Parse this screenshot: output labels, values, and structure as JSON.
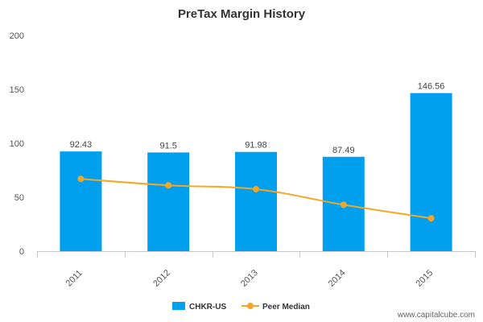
{
  "chart_data": {
    "type": "bar",
    "title": "PreTax Margin History",
    "categories": [
      "2011",
      "2012",
      "2013",
      "2014",
      "2015"
    ],
    "series": [
      {
        "name": "CHKR-US",
        "type": "bar",
        "values": [
          92.43,
          91.5,
          91.98,
          87.49,
          146.56
        ],
        "labels": [
          "92.43",
          "91.5",
          "91.98",
          "87.49",
          "146.56"
        ],
        "color": "#00a0ef"
      },
      {
        "name": "Peer Median",
        "type": "line",
        "values": [
          67,
          61,
          57.5,
          43,
          30.5
        ],
        "color": "#f5a623"
      }
    ],
    "yticks": [
      "0",
      "50",
      "100",
      "150",
      "200"
    ],
    "ylim": [
      0,
      200
    ],
    "grid": false,
    "legend": "bottom-center"
  },
  "watermark": "www.capitalcube.com"
}
